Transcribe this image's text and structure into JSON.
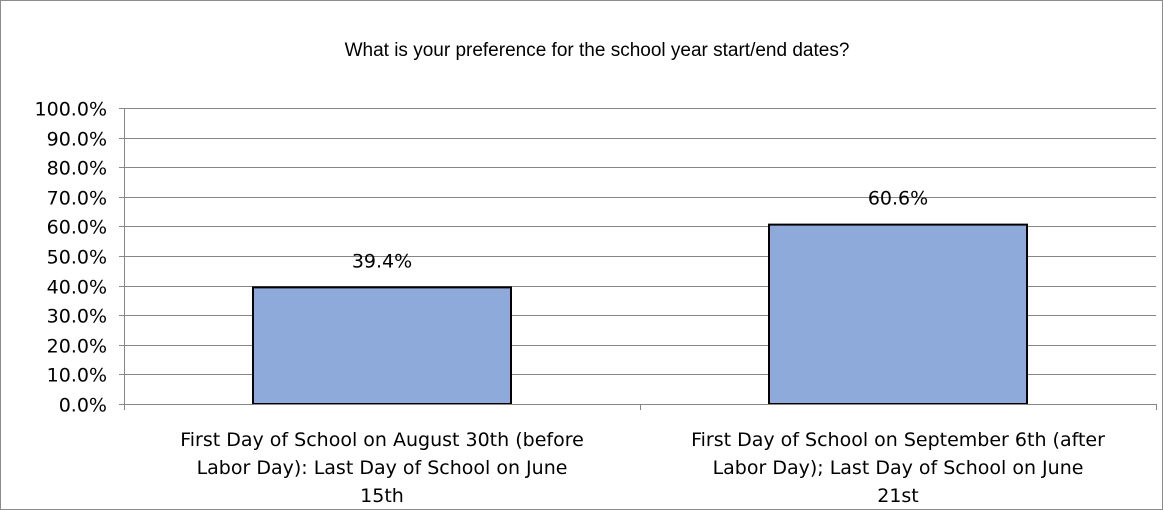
{
  "chart_data": {
    "type": "bar",
    "title": "What is your preference for the school year start/end dates?",
    "categories": [
      [
        "First Day of School on August 30th (before",
        "Labor Day): Last Day of School on June",
        "15th"
      ],
      [
        "First Day of School on September 6th (after",
        "Labor Day); Last Day of School on June",
        "21st"
      ]
    ],
    "values": [
      39.4,
      60.6
    ],
    "data_labels": [
      "39.4%",
      "60.6%"
    ],
    "y_ticks": [
      "0.0%",
      "10.0%",
      "20.0%",
      "30.0%",
      "40.0%",
      "50.0%",
      "60.0%",
      "70.0%",
      "80.0%",
      "90.0%",
      "100.0%"
    ],
    "ylim": [
      0,
      100
    ],
    "xlabel": "",
    "ylabel": "",
    "grid": true,
    "legend": "none",
    "colors": {
      "bar_fill": "#8eaadb",
      "bar_stroke": "#000000",
      "grid": "#868686"
    }
  }
}
